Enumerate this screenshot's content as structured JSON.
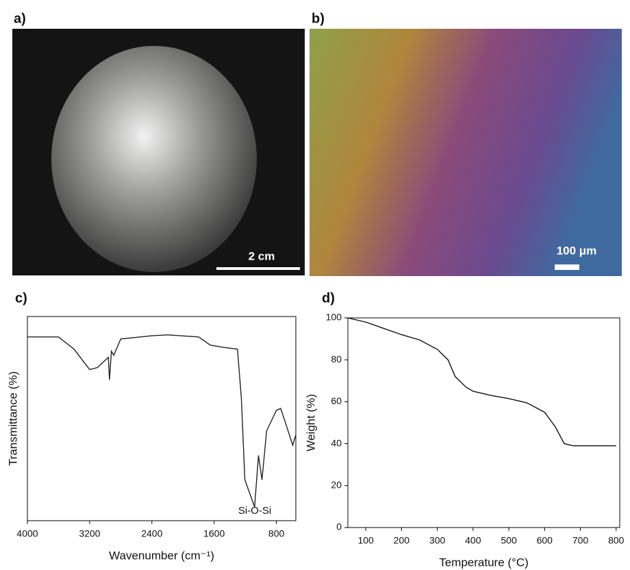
{
  "panels": {
    "a": {
      "label": "a)",
      "scale_bar": "2 cm"
    },
    "b": {
      "label": "b)",
      "scale_bar": "100 μm"
    },
    "c": {
      "label": "c)"
    },
    "d": {
      "label": "d)"
    }
  },
  "chart_data": [
    {
      "type": "line",
      "x_label": "Wavenumber (cm⁻¹)",
      "y_label": "Transmittance (%)",
      "annotation": "Si-O-Si",
      "x": [
        4000,
        3600,
        3400,
        3200,
        3100,
        2960,
        2945,
        2920,
        2890,
        2800,
        2400,
        2200,
        1800,
        1650,
        1500,
        1300,
        1250,
        1205,
        1080,
        1030,
        985,
        925,
        850,
        800,
        745,
        675,
        590,
        550
      ],
      "series": [
        {
          "color": "#222222",
          "values": [
            90,
            90,
            84,
            74,
            75,
            80,
            69,
            83,
            81,
            89,
            90.6,
            91,
            90,
            86,
            85,
            84,
            60,
            20,
            6.7,
            32,
            20,
            44,
            50,
            54,
            55,
            47,
            37,
            42
          ]
        }
      ],
      "xlim": [
        4000,
        550
      ],
      "xticks": [
        4000,
        3200,
        2400,
        1600,
        800
      ],
      "ylim": [
        0,
        100
      ]
    },
    {
      "type": "line",
      "x_label": "Temperature (°C)",
      "y_label": "Weight (%)",
      "x": [
        50,
        100,
        150,
        200,
        250,
        300,
        330,
        350,
        380,
        400,
        450,
        500,
        550,
        600,
        630,
        655,
        680,
        800
      ],
      "series": [
        {
          "color": "#111111",
          "values": [
            100,
            98,
            95,
            92,
            89.5,
            85,
            80,
            72,
            67,
            65,
            63,
            61.5,
            59.5,
            55,
            48,
            40,
            39,
            39
          ]
        }
      ],
      "xlim": [
        50,
        810
      ],
      "xticks": [
        100,
        200,
        300,
        400,
        500,
        600,
        700,
        800
      ],
      "ylim": [
        0,
        100
      ],
      "yticks": [
        0,
        20,
        40,
        60,
        80,
        100
      ]
    }
  ]
}
